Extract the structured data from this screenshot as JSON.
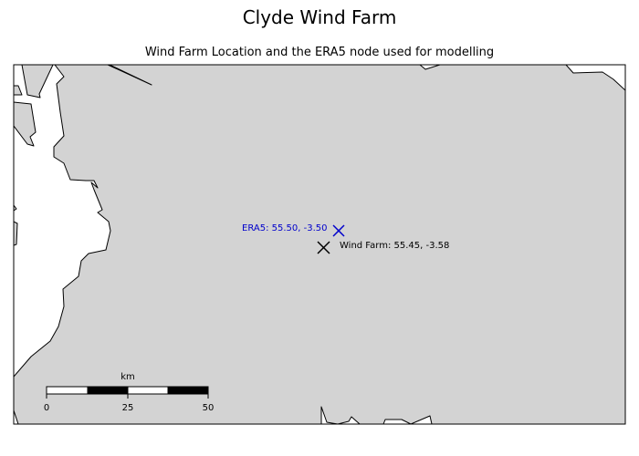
{
  "figure": {
    "title": "Clyde Wind Farm",
    "subtitle": "Wind Farm Location and the ERA5 node used for modelling"
  },
  "map": {
    "land_color": "#d3d3d3",
    "water_color": "#ffffff",
    "coastline_color": "#000000"
  },
  "markers": [
    {
      "name": "era5",
      "label": "ERA5: 55.50, -3.50",
      "color": "#0000cc",
      "symbol": "x"
    },
    {
      "name": "wind-farm",
      "label": "Wind Farm: 55.45, -3.58",
      "color": "#000000",
      "symbol": "x"
    }
  ],
  "scale_bar": {
    "unit": "km",
    "ticks": [
      "0",
      "25",
      "50"
    ]
  }
}
